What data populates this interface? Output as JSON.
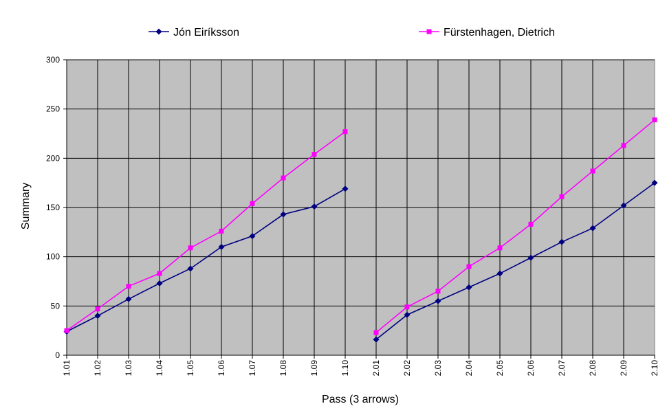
{
  "chart_data": {
    "type": "line",
    "title": "",
    "xlabel": "Pass (3 arrows)",
    "ylabel": "Summary",
    "ylim": [
      0,
      300
    ],
    "yticks": [
      "0",
      "50",
      "100",
      "150",
      "200",
      "250",
      "300"
    ],
    "grid": true,
    "legend_position": "top",
    "categories": [
      "1.01",
      "1.02",
      "1.03",
      "1.04",
      "1.05",
      "1.06",
      "1.07",
      "1.08",
      "1.09",
      "1.10",
      "2.01",
      "2.02",
      "2.03",
      "2.04",
      "2.05",
      "2.06",
      "2.07",
      "2.08",
      "2.09",
      "2.10"
    ],
    "series": [
      {
        "name": "Jón Eiríksson",
        "color": "#000080",
        "marker": "diamond",
        "values": [
          24,
          40,
          57,
          73,
          88,
          110,
          121,
          143,
          151,
          169,
          16,
          41,
          55,
          69,
          83,
          99,
          115,
          129,
          152,
          175
        ],
        "breaks_after": [
          9
        ]
      },
      {
        "name": "Fürstenhagen, Dietrich",
        "color": "#FF00FF",
        "marker": "square",
        "values": [
          25,
          47,
          70,
          83,
          109,
          126,
          154,
          180,
          204,
          227,
          23,
          49,
          65,
          90,
          109,
          133,
          161,
          187,
          213,
          239
        ],
        "breaks_after": [
          9
        ]
      }
    ],
    "plot_background": "#C0C0C0",
    "gridline_color": "#000000"
  }
}
